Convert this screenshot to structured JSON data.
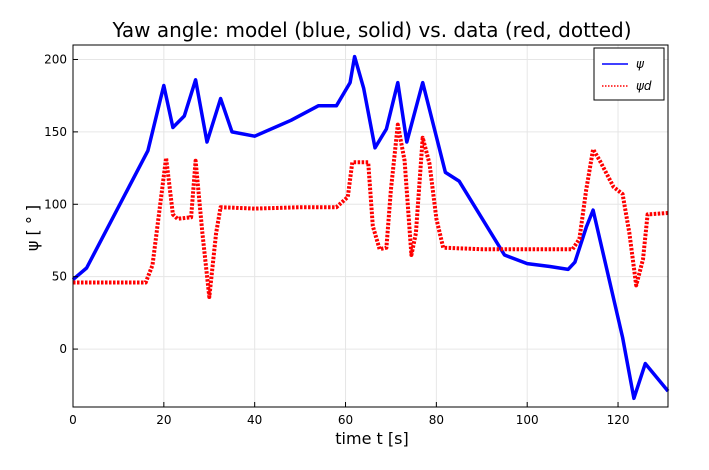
{
  "chart_data": {
    "type": "line",
    "title": "Yaw angle: model (blue, solid) vs. data (red, dotted)",
    "xlabel": "time t [s]",
    "ylabel": "ψ [ ° ]",
    "xlim": [
      0,
      131
    ],
    "ylim": [
      -40,
      210
    ],
    "xticks": [
      0,
      20,
      40,
      60,
      80,
      100,
      120
    ],
    "yticks": [
      0,
      50,
      100,
      150,
      200
    ],
    "grid": true,
    "legend_position": "top-right",
    "series": [
      {
        "name": "ψ",
        "color": "#0000ff",
        "style": "solid",
        "x": [
          0,
          3,
          16.5,
          20,
          22,
          24.5,
          27,
          29.5,
          32.5,
          35,
          40,
          48,
          54,
          58,
          61,
          62,
          64,
          66.5,
          69,
          71.5,
          73.5,
          77,
          82,
          85,
          95,
          100,
          105,
          109,
          110.5,
          113,
          114.5,
          121,
          123.5,
          126,
          131
        ],
        "y": [
          48,
          56,
          137,
          182,
          153,
          161,
          186,
          143,
          173,
          150,
          147,
          158,
          168,
          168,
          184,
          202,
          180,
          139,
          152,
          184,
          143,
          184,
          122,
          116,
          65,
          59,
          57,
          55,
          60,
          84,
          96,
          8,
          -34,
          -10,
          -29
        ]
      },
      {
        "name": "ψd",
        "color": "#ff0000",
        "style": "dotted",
        "x": [
          0,
          16,
          17.5,
          19,
          20.5,
          22,
          23,
          26,
          27,
          28.5,
          30,
          31.5,
          32.5,
          40,
          50,
          58,
          60.5,
          61.5,
          65,
          66,
          67.5,
          69,
          70,
          71.5,
          73,
          74.5,
          75.5,
          77,
          78.5,
          80,
          81.5,
          90,
          100,
          110,
          111.5,
          113,
          114.5,
          116,
          119,
          121,
          122.5,
          124,
          125.5,
          126.5,
          131
        ],
        "y": [
          46,
          46,
          58,
          95,
          132,
          93,
          90,
          91,
          130,
          80,
          36,
          80,
          98,
          97,
          98,
          98,
          105,
          129,
          129,
          85,
          69,
          70,
          110,
          155,
          130,
          65,
          80,
          146,
          128,
          90,
          70,
          69,
          69,
          69,
          76,
          110,
          138,
          130,
          112,
          107,
          80,
          44,
          62,
          93,
          94
        ]
      }
    ]
  }
}
